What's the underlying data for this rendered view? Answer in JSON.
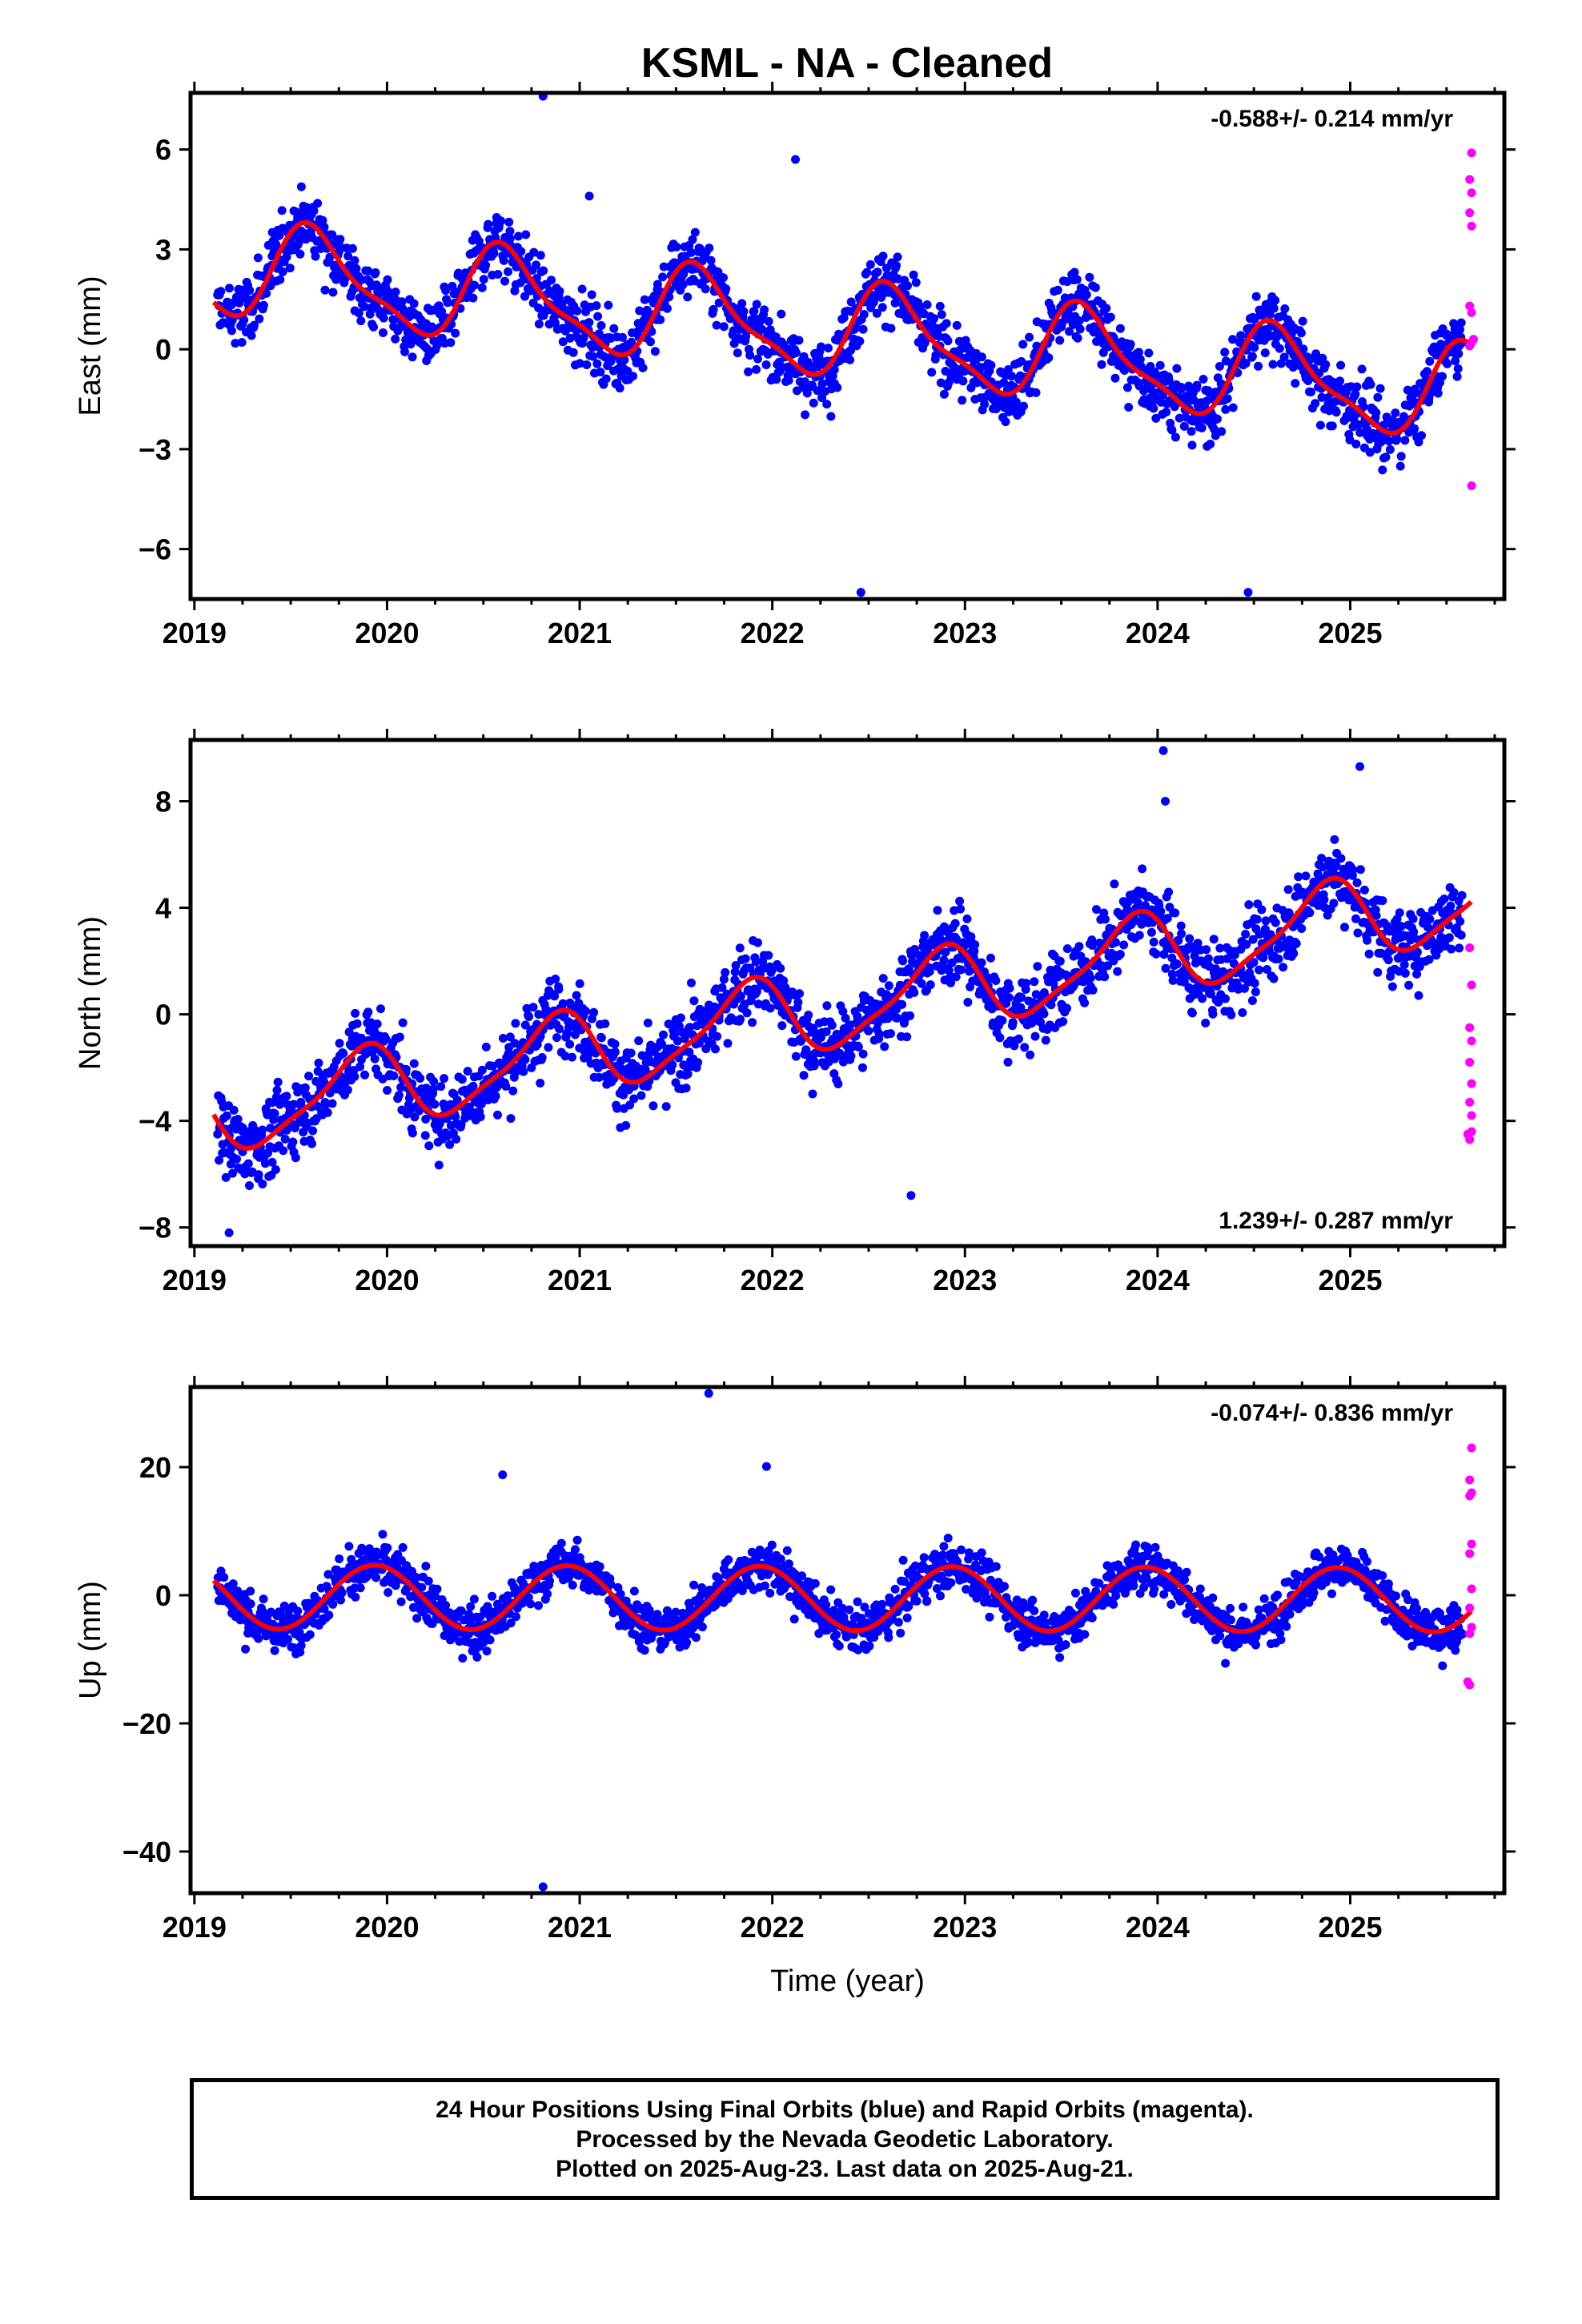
{
  "title": "KSML  - NA - Cleaned",
  "colors": {
    "final": "#0000ff",
    "rapid": "#ff00ff",
    "model": "#ff0000",
    "axis": "#000000"
  },
  "footer": {
    "line1": "24 Hour Positions Using Final Orbits (blue) and Rapid Orbits (magenta).",
    "line2": "Processed by the Nevada Geodetic Laboratory.",
    "line3": "Plotted on 2025-Aug-23. Last data on 2025-Aug-21."
  },
  "chart_data": [
    {
      "type": "scatter",
      "component": "east",
      "ylabel": "East (mm)",
      "xlabel": "",
      "xlim": [
        2018.98,
        2025.8
      ],
      "ylim": [
        -7.5,
        7.7
      ],
      "x_ticks": [
        2019,
        2020,
        2021,
        2022,
        2023,
        2024,
        2025
      ],
      "y_ticks": [
        -6,
        -3,
        0,
        3,
        6
      ],
      "rate_label": "-0.588+/- 0.214 mm/yr",
      "rate_position": "top-right",
      "model": {
        "trend_mm_per_yr": -0.588,
        "offset_mm": 0.5,
        "ref_year": 2022.4,
        "annual_cos": -0.95,
        "annual_sin": -0.95,
        "semiannual_cos": 0.35,
        "semiannual_sin": 0.2,
        "x_start": 2019.1,
        "x_end": 2025.63
      },
      "samples": {
        "x_start": 2019.12,
        "x_end": 2025.58,
        "count": 1900,
        "scatter_sd": 1.0
      },
      "outliers": [
        [
          2020.81,
          7.6
        ],
        [
          2022.12,
          5.7
        ],
        [
          2022.46,
          -7.3
        ],
        [
          2024.47,
          -7.3
        ],
        [
          2021.05,
          4.6
        ]
      ],
      "rapid_points": [
        [
          2025.63,
          5.9
        ],
        [
          2025.62,
          5.1
        ],
        [
          2025.63,
          4.7
        ],
        [
          2025.62,
          4.1
        ],
        [
          2025.63,
          3.7
        ],
        [
          2025.62,
          1.3
        ],
        [
          2025.63,
          1.1
        ],
        [
          2025.64,
          0.3
        ],
        [
          2025.62,
          0.1
        ],
        [
          2025.63,
          0.2
        ],
        [
          2025.63,
          -4.1
        ]
      ]
    },
    {
      "type": "scatter",
      "component": "north",
      "ylabel": "North (mm)",
      "xlabel": "",
      "xlim": [
        2018.98,
        2025.8
      ],
      "ylim": [
        -8.7,
        10.3
      ],
      "x_ticks": [
        2019,
        2020,
        2021,
        2022,
        2023,
        2024,
        2025
      ],
      "y_ticks": [
        -8,
        -4,
        0,
        4,
        8
      ],
      "rate_label": "1.239+/- 0.287 mm/yr",
      "rate_position": "bottom-right",
      "model": {
        "trend_mm_per_yr": 1.239,
        "offset_mm": 0.3,
        "ref_year": 2022.4,
        "annual_cos": 0.95,
        "annual_sin": -1.1,
        "semiannual_cos": 0.3,
        "semiannual_sin": -0.2,
        "x_start": 2019.1,
        "x_end": 2025.63
      },
      "samples": {
        "x_start": 2019.12,
        "x_end": 2025.58,
        "count": 1900,
        "scatter_sd": 1.4
      },
      "outliers": [
        [
          2024.03,
          9.9
        ],
        [
          2025.05,
          9.3
        ],
        [
          2024.04,
          8.0
        ],
        [
          2019.18,
          -8.2
        ],
        [
          2022.72,
          -6.8
        ]
      ],
      "rapid_points": [
        [
          2025.62,
          2.5
        ],
        [
          2025.63,
          1.1
        ],
        [
          2025.62,
          -0.5
        ],
        [
          2025.63,
          -1.0
        ],
        [
          2025.62,
          -1.8
        ],
        [
          2025.63,
          -2.6
        ],
        [
          2025.62,
          -3.3
        ],
        [
          2025.63,
          -3.8
        ],
        [
          2025.61,
          -4.5
        ],
        [
          2025.62,
          -4.7
        ],
        [
          2025.63,
          -4.4
        ]
      ]
    },
    {
      "type": "scatter",
      "component": "up",
      "ylabel": "Up (mm)",
      "xlabel": "Time (year)",
      "xlim": [
        2018.98,
        2025.8
      ],
      "ylim": [
        -46.5,
        32.5
      ],
      "x_ticks": [
        2019,
        2020,
        2021,
        2022,
        2023,
        2024,
        2025
      ],
      "y_ticks": [
        -40,
        -20,
        0,
        20
      ],
      "rate_label": "-0.074+/- 0.836 mm/yr",
      "rate_position": "top-right",
      "model": {
        "trend_mm_per_yr": -0.074,
        "offset_mm": -0.5,
        "ref_year": 2022.4,
        "annual_cos": 4.6,
        "annual_sin": -2.0,
        "semiannual_cos": 0.0,
        "semiannual_sin": 0.0,
        "x_start": 2019.1,
        "x_end": 2025.63
      },
      "samples": {
        "x_start": 2019.12,
        "x_end": 2025.58,
        "count": 1900,
        "scatter_sd": 3.6
      },
      "outliers": [
        [
          2021.67,
          31.5
        ],
        [
          2020.81,
          -45.5
        ],
        [
          2021.97,
          20.1
        ],
        [
          2020.6,
          18.8
        ]
      ],
      "rapid_points": [
        [
          2025.63,
          23.0
        ],
        [
          2025.62,
          18.0
        ],
        [
          2025.63,
          16.0
        ],
        [
          2025.62,
          15.5
        ],
        [
          2025.63,
          8.0
        ],
        [
          2025.62,
          6.5
        ],
        [
          2025.63,
          1.0
        ],
        [
          2025.62,
          -2.0
        ],
        [
          2025.63,
          -5.0
        ],
        [
          2025.62,
          -6.0
        ],
        [
          2025.61,
          -13.5
        ],
        [
          2025.62,
          -14.0
        ]
      ]
    }
  ]
}
